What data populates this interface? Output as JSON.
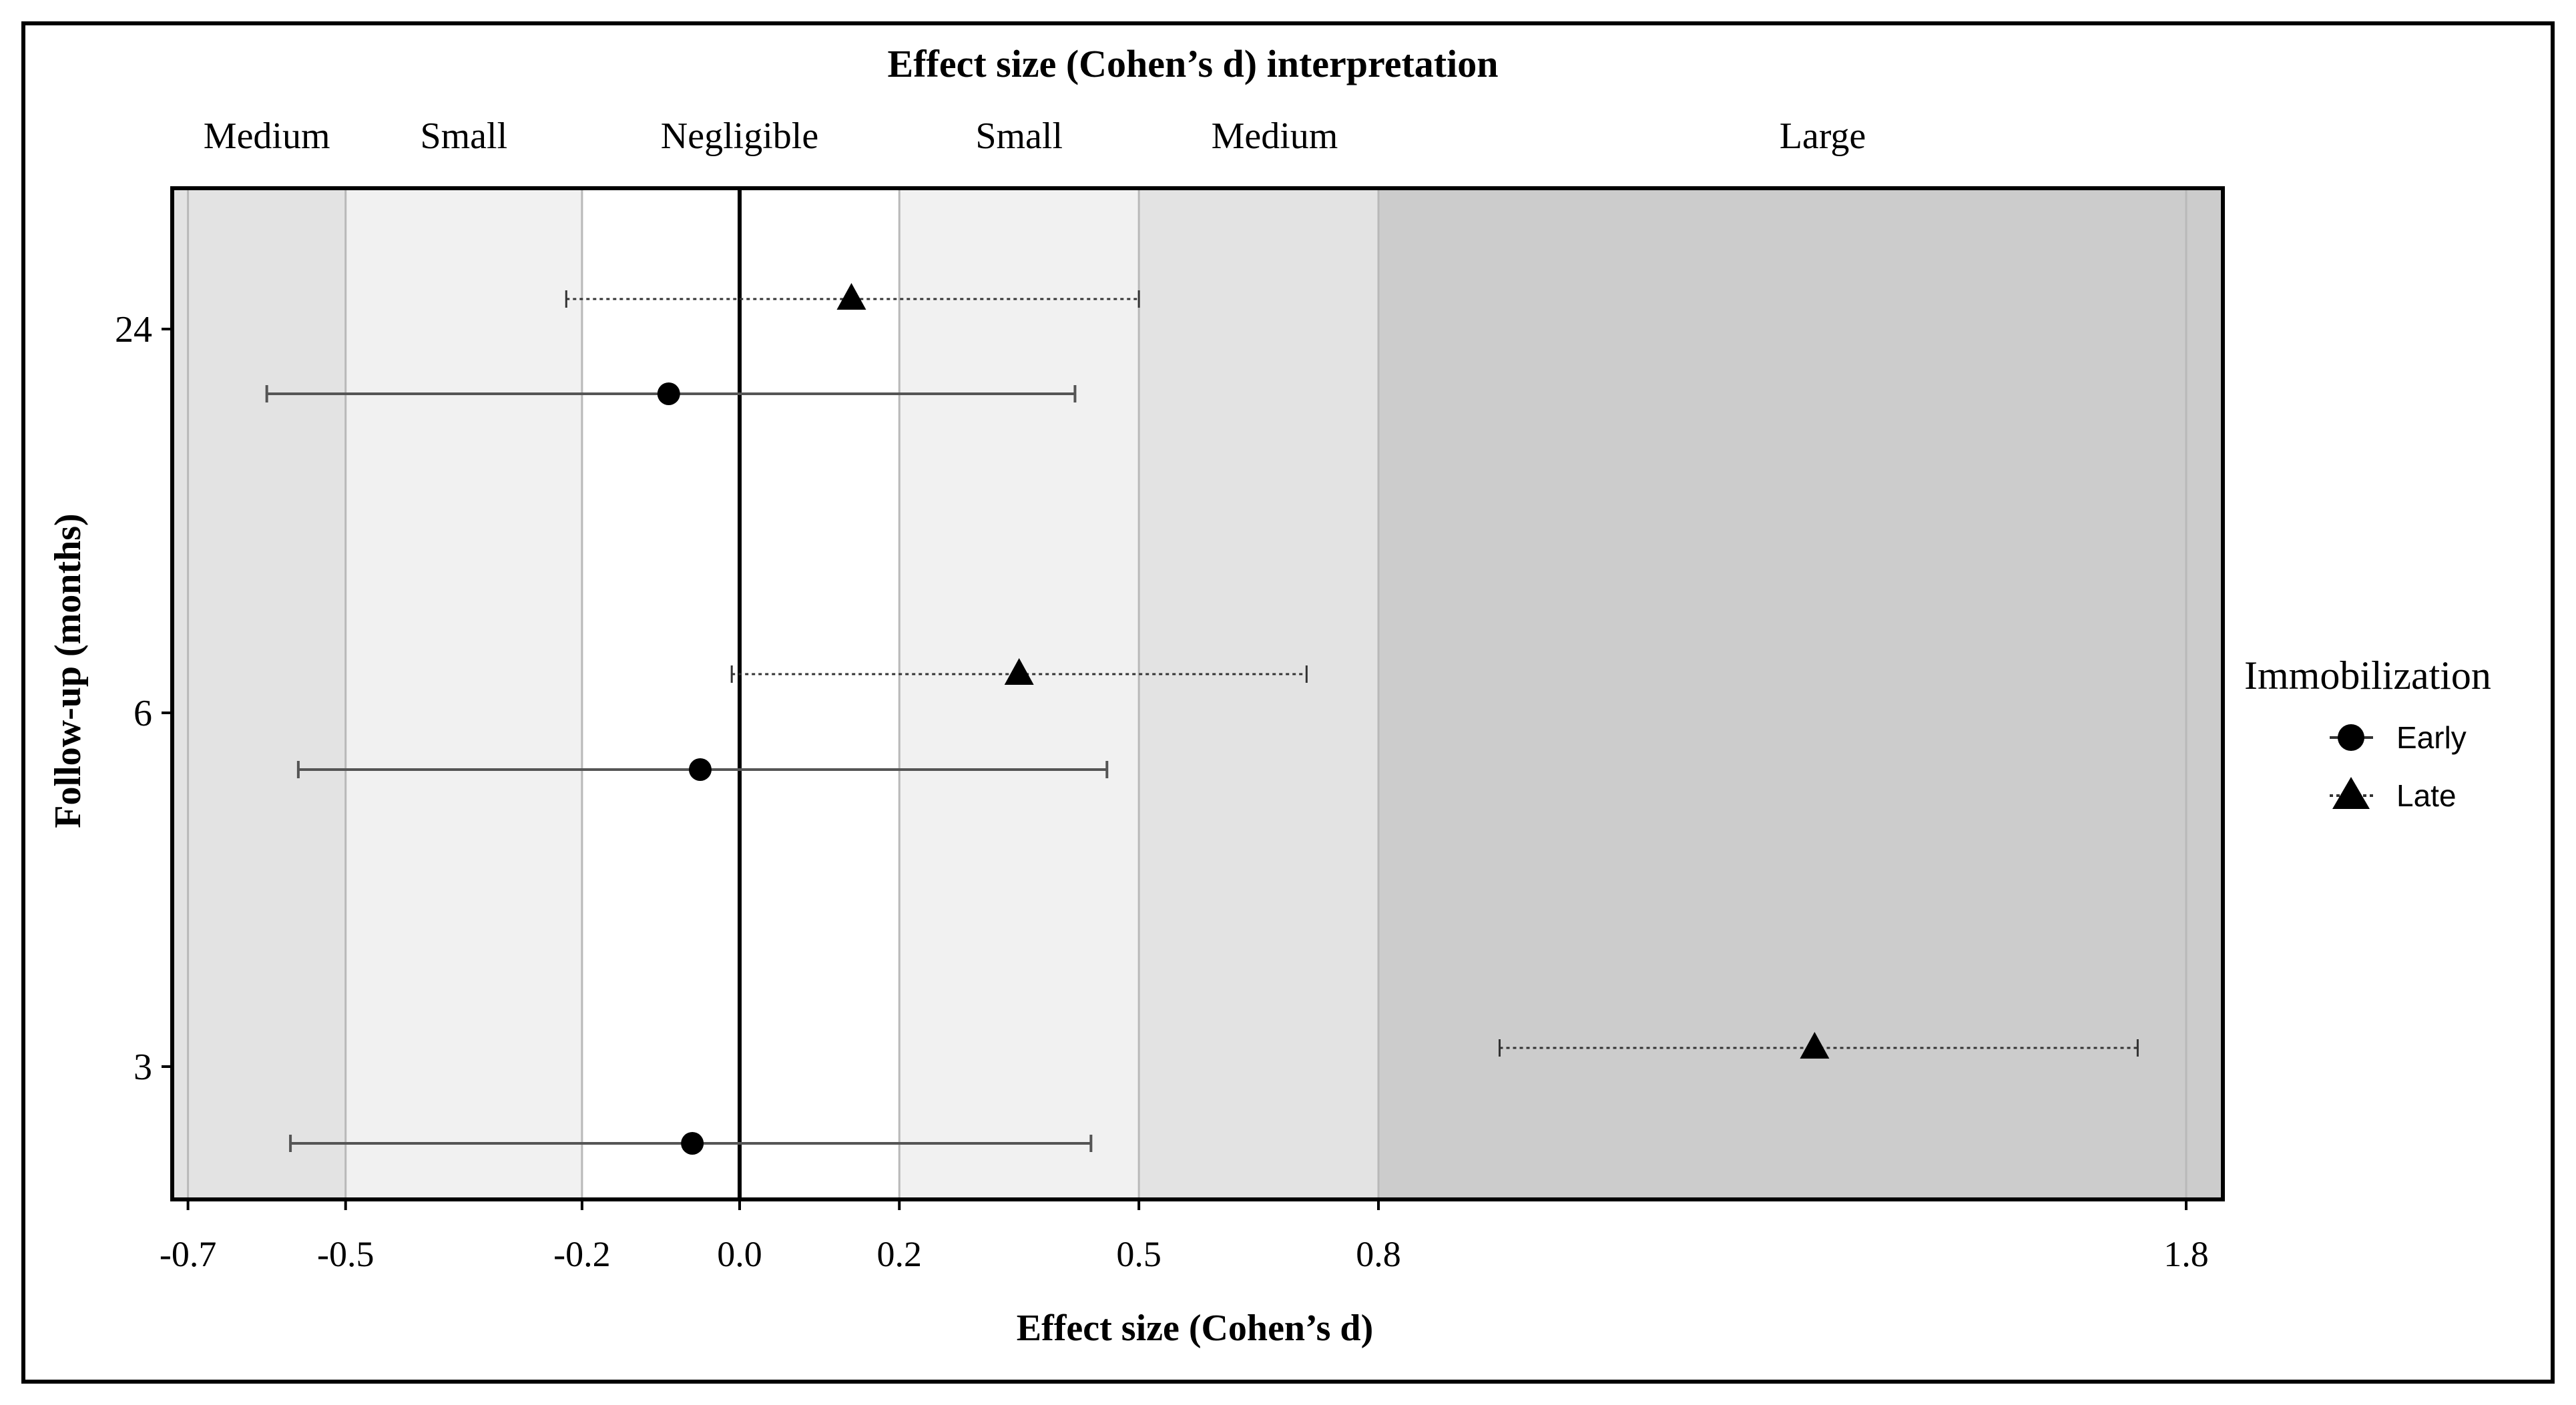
{
  "chart_data": {
    "type": "scatter",
    "subtype": "forest-plot",
    "top_title": "Effect size (Cohen’s d) interpretation",
    "xlabel": "Effect size (Cohen’s d)",
    "ylabel": "Follow-up (months)",
    "xlim": [
      -0.72,
      1.85
    ],
    "x_ticks": [
      {
        "value": -0.7,
        "label": "-0.7"
      },
      {
        "value": -0.5,
        "label": "-0.5"
      },
      {
        "value": -0.2,
        "label": "-0.2"
      },
      {
        "value": 0.0,
        "label": "0.0"
      },
      {
        "value": 0.2,
        "label": "0.2"
      },
      {
        "value": 0.5,
        "label": "0.5"
      },
      {
        "value": 0.8,
        "label": "0.8"
      },
      {
        "value": 1.8,
        "label": "1.8"
      }
    ],
    "y_categories": [
      "24",
      "6",
      "3"
    ],
    "zero_line": 0.0,
    "interpretation_bands": [
      {
        "label": "Medium",
        "from": -0.72,
        "to": -0.5,
        "label_at": -0.6,
        "fill": "#e3e3e3"
      },
      {
        "label": "Small",
        "from": -0.5,
        "to": -0.2,
        "label_at": -0.35,
        "fill": "#f1f1f1"
      },
      {
        "label": "Negligible",
        "from": -0.2,
        "to": 0.2,
        "label_at": 0.0,
        "fill": "#ffffff"
      },
      {
        "label": "Small",
        "from": 0.2,
        "to": 0.5,
        "label_at": 0.35,
        "fill": "#f1f1f1"
      },
      {
        "label": "Medium",
        "from": 0.5,
        "to": 0.8,
        "label_at": 0.67,
        "fill": "#e3e3e3"
      },
      {
        "label": "Large",
        "from": 0.8,
        "to": 1.85,
        "label_at": 1.35,
        "fill": "#cccccc"
      }
    ],
    "legend": {
      "title": "Immobilization",
      "position": "right",
      "items": [
        {
          "name": "Early",
          "marker": "circle",
          "line": "solid"
        },
        {
          "name": "Late",
          "marker": "triangle",
          "line": "dotted"
        }
      ]
    },
    "series": [
      {
        "name": "Early",
        "marker": "circle",
        "line": "solid",
        "points": [
          {
            "y": "24",
            "estimate": -0.09,
            "lower": -0.6,
            "upper": 0.42
          },
          {
            "y": "6",
            "estimate": -0.05,
            "lower": -0.56,
            "upper": 0.46
          },
          {
            "y": "3",
            "estimate": -0.06,
            "lower": -0.57,
            "upper": 0.44
          }
        ]
      },
      {
        "name": "Late",
        "marker": "triangle",
        "line": "dotted",
        "points": [
          {
            "y": "24",
            "estimate": 0.14,
            "lower": -0.22,
            "upper": 0.5
          },
          {
            "y": "6",
            "estimate": 0.35,
            "lower": -0.01,
            "upper": 0.71
          },
          {
            "y": "3",
            "estimate": 1.34,
            "lower": 0.95,
            "upper": 1.74
          }
        ]
      }
    ]
  }
}
